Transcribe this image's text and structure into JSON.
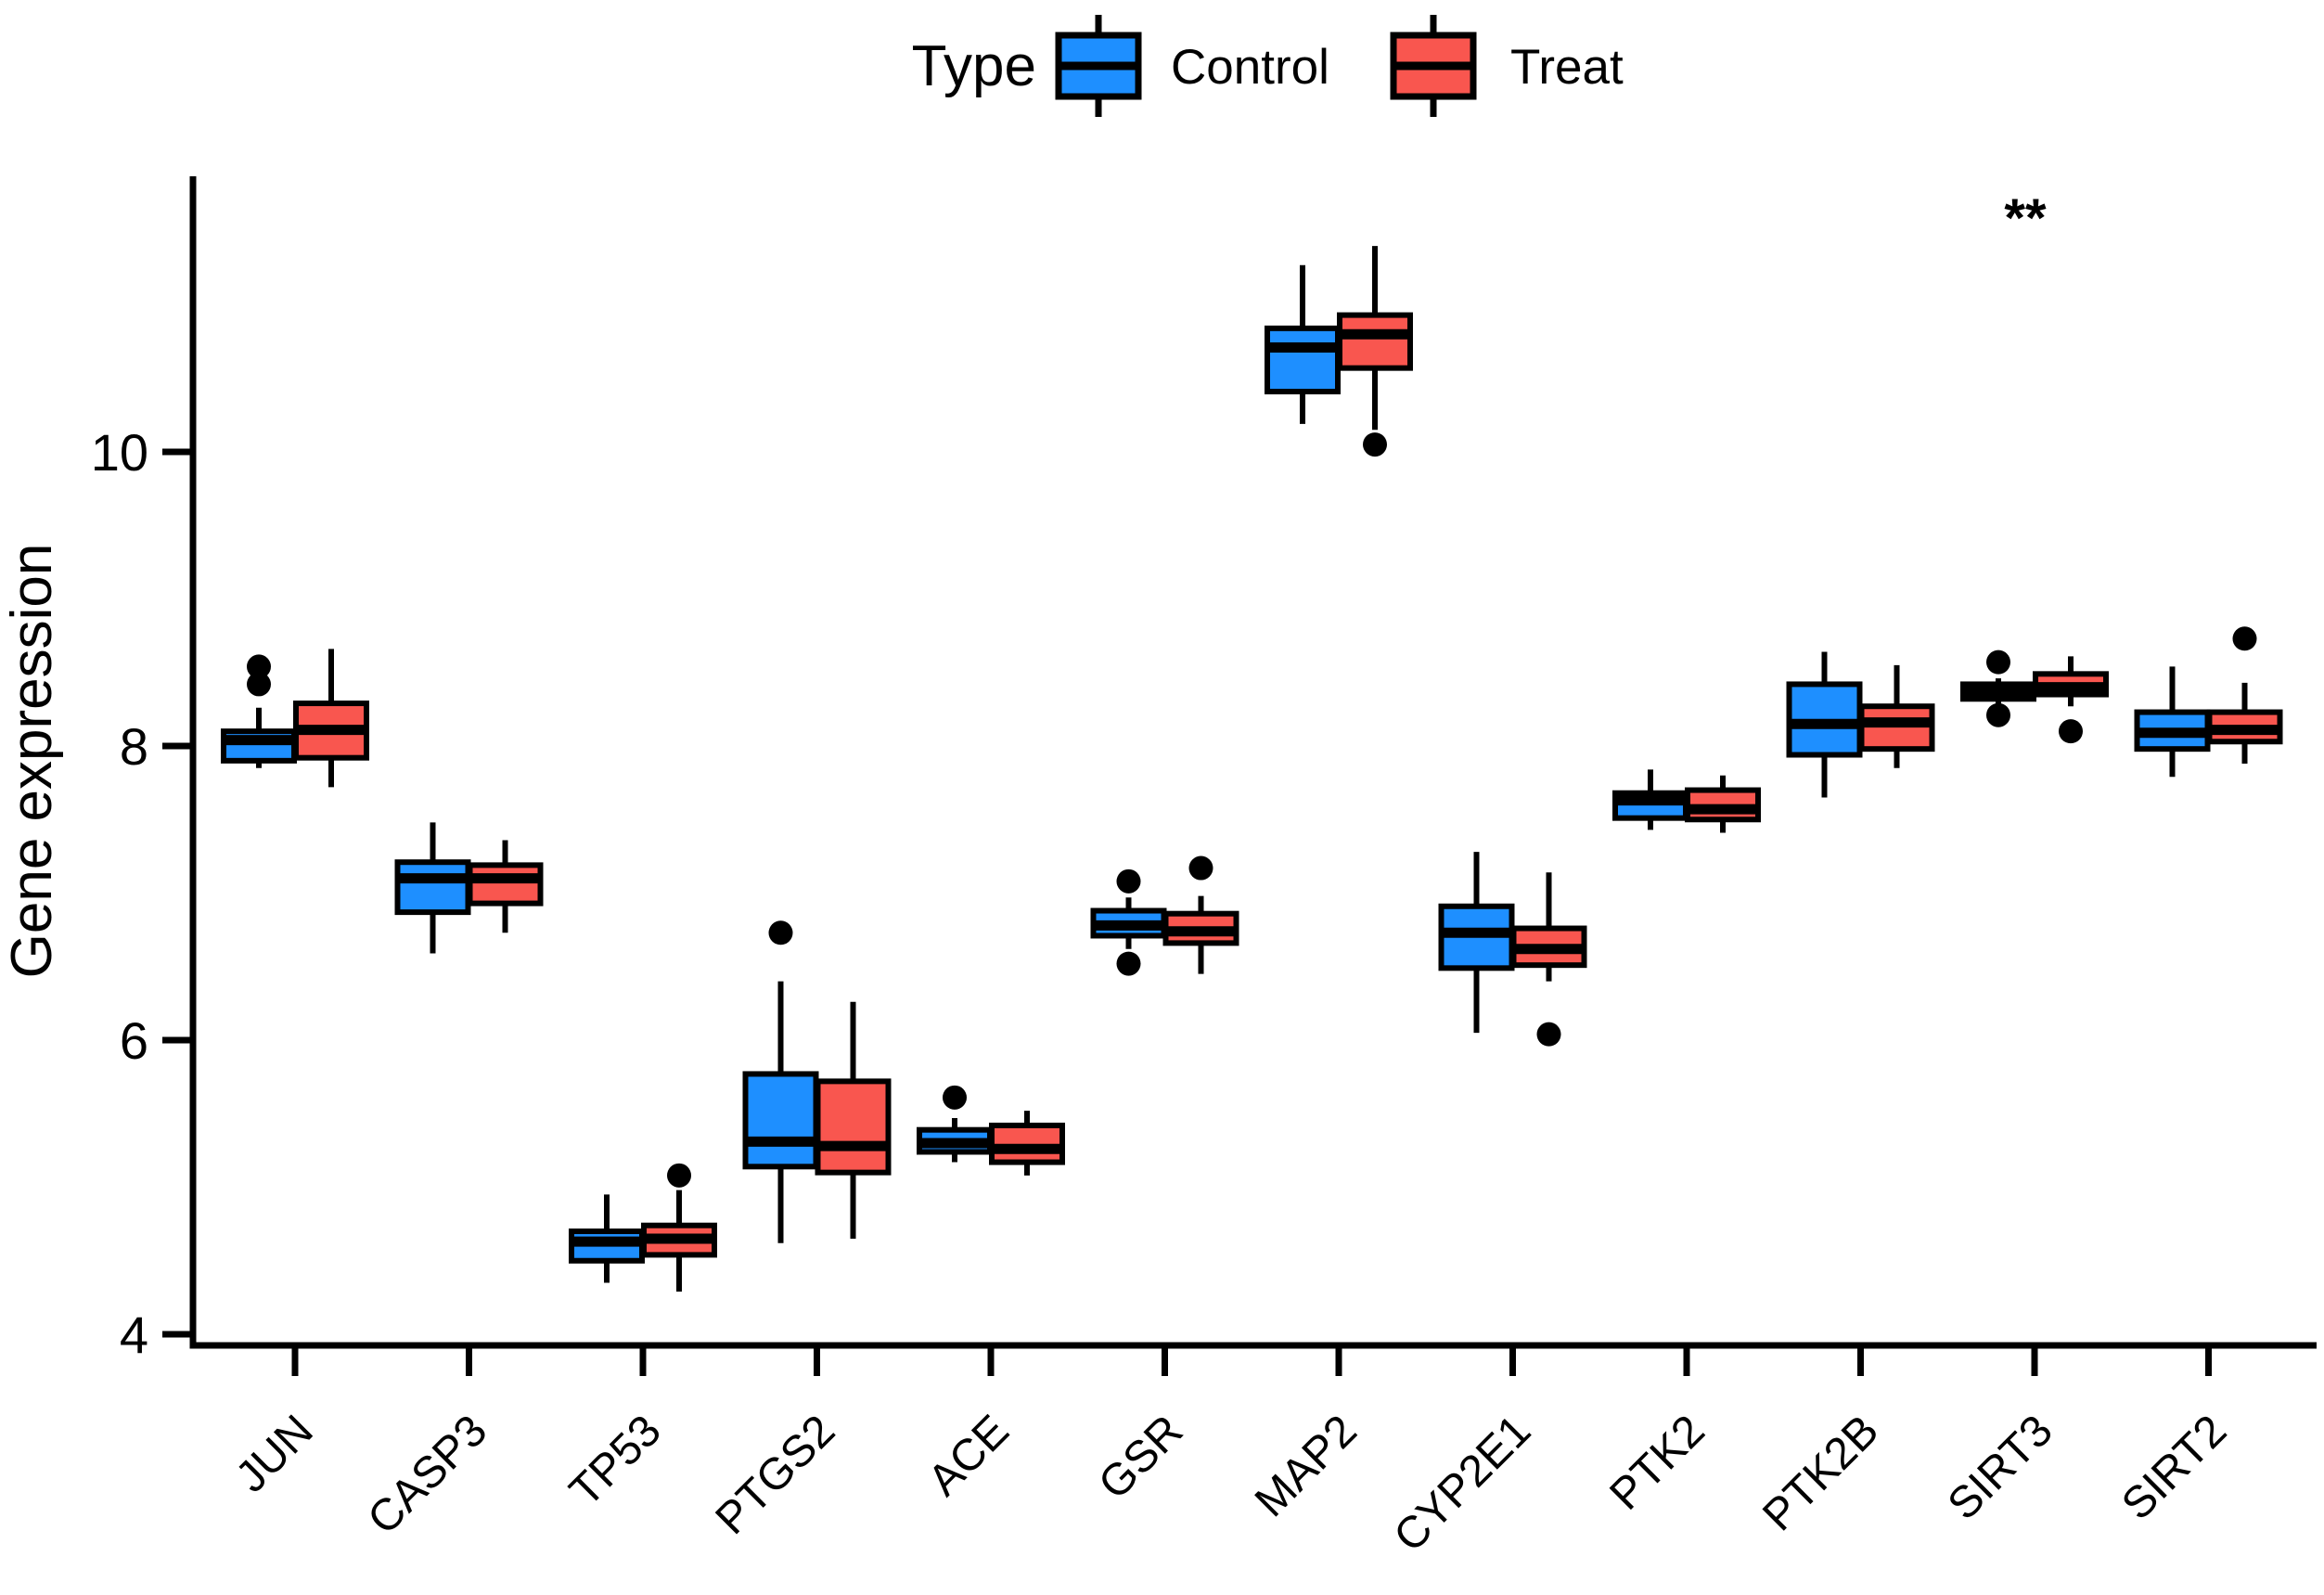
{
  "chart_data": {
    "type": "grouped_boxplot",
    "title": "",
    "xlabel": "",
    "ylabel": "Gene expression",
    "ylim": [
      3.9,
      11.9
    ],
    "yticks": [
      4,
      6,
      8,
      10
    ],
    "grid": false,
    "background": "#ffffff",
    "axis_color": "#000000",
    "legend": {
      "title": "Type",
      "position": "top",
      "entries": [
        {
          "label": "Control",
          "color": "#1E8FFF"
        },
        {
          "label": "Treat",
          "color": "#F9564F"
        }
      ]
    },
    "categories": [
      "JUN",
      "CASP3",
      "TP53",
      "PTGS2",
      "ACE",
      "GSR",
      "MAP2",
      "CYP2E1",
      "PTK2",
      "PTK2B",
      "SIRT3",
      "SIRT2"
    ],
    "series": [
      {
        "name": "Control",
        "color": "#1E8FFF",
        "boxes": [
          {
            "low": 7.85,
            "q1": 7.9,
            "median": 8.04,
            "q3": 8.1,
            "high": 8.26,
            "outliers": [
              8.42,
              8.54
            ]
          },
          {
            "low": 6.59,
            "q1": 6.87,
            "median": 7.1,
            "q3": 7.21,
            "high": 7.48,
            "outliers": []
          },
          {
            "low": 4.35,
            "q1": 4.5,
            "median": 4.63,
            "q3": 4.7,
            "high": 4.95,
            "outliers": []
          },
          {
            "low": 4.62,
            "q1": 5.14,
            "median": 5.31,
            "q3": 5.77,
            "high": 6.4,
            "outliers": [
              6.73
            ]
          },
          {
            "low": 5.17,
            "q1": 5.24,
            "median": 5.3,
            "q3": 5.39,
            "high": 5.47,
            "outliers": [
              5.61
            ]
          },
          {
            "low": 6.62,
            "q1": 6.71,
            "median": 6.78,
            "q3": 6.88,
            "high": 6.97,
            "outliers": [
              7.08,
              6.52
            ]
          },
          {
            "low": 10.19,
            "q1": 10.41,
            "median": 10.71,
            "q3": 10.84,
            "high": 11.27,
            "outliers": []
          },
          {
            "low": 6.05,
            "q1": 6.49,
            "median": 6.73,
            "q3": 6.91,
            "high": 7.28,
            "outliers": []
          },
          {
            "low": 7.43,
            "q1": 7.51,
            "median": 7.63,
            "q3": 7.68,
            "high": 7.84,
            "outliers": []
          },
          {
            "low": 7.65,
            "q1": 7.94,
            "median": 8.15,
            "q3": 8.42,
            "high": 8.64,
            "outliers": []
          },
          {
            "low": 8.28,
            "q1": 8.32,
            "median": 8.37,
            "q3": 8.42,
            "high": 8.46,
            "outliers": [
              8.57,
              8.21
            ]
          },
          {
            "low": 7.79,
            "q1": 7.98,
            "median": 8.09,
            "q3": 8.23,
            "high": 8.54,
            "outliers": []
          }
        ]
      },
      {
        "name": "Treat",
        "color": "#F9564F",
        "boxes": [
          {
            "low": 7.72,
            "q1": 7.92,
            "median": 8.11,
            "q3": 8.29,
            "high": 8.66,
            "outliers": []
          },
          {
            "low": 6.73,
            "q1": 6.93,
            "median": 7.1,
            "q3": 7.19,
            "high": 7.36,
            "outliers": []
          },
          {
            "low": 4.29,
            "q1": 4.54,
            "median": 4.65,
            "q3": 4.74,
            "high": 4.98,
            "outliers": [
              5.08
            ]
          },
          {
            "low": 4.65,
            "q1": 5.1,
            "median": 5.28,
            "q3": 5.72,
            "high": 6.26,
            "outliers": []
          },
          {
            "low": 5.08,
            "q1": 5.17,
            "median": 5.26,
            "q3": 5.42,
            "high": 5.52,
            "outliers": []
          },
          {
            "low": 6.45,
            "q1": 6.66,
            "median": 6.74,
            "q3": 6.86,
            "high": 6.98,
            "outliers": [
              7.17
            ]
          },
          {
            "low": 10.15,
            "q1": 10.57,
            "median": 10.8,
            "q3": 10.93,
            "high": 11.4,
            "outliers": [
              10.05
            ]
          },
          {
            "low": 6.4,
            "q1": 6.51,
            "median": 6.62,
            "q3": 6.76,
            "high": 7.14,
            "outliers": [
              6.04
            ]
          },
          {
            "low": 7.41,
            "q1": 7.5,
            "median": 7.57,
            "q3": 7.7,
            "high": 7.8,
            "outliers": []
          },
          {
            "low": 7.85,
            "q1": 7.98,
            "median": 8.16,
            "q3": 8.27,
            "high": 8.55,
            "outliers": []
          },
          {
            "low": 8.27,
            "q1": 8.35,
            "median": 8.4,
            "q3": 8.49,
            "high": 8.61,
            "outliers": [
              8.1
            ]
          },
          {
            "low": 7.88,
            "q1": 8.03,
            "median": 8.11,
            "q3": 8.23,
            "high": 8.43,
            "outliers": [
              8.73
            ]
          }
        ]
      }
    ],
    "annotations": [
      {
        "text": "**",
        "category": "SIRT3",
        "y": 11.64
      }
    ]
  }
}
